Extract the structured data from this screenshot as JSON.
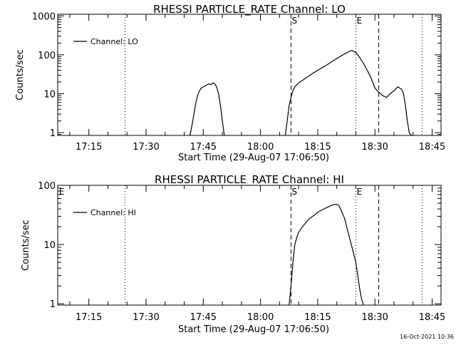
{
  "chart_data": [
    {
      "type": "line",
      "title": "RHESSI PARTICLE_RATE Channel: LO",
      "ylabel": "Counts/sec",
      "xlabel": "Start Time (29-Aug-07 17:06:50)",
      "yscale": "log",
      "ylim": [
        0.85,
        1100
      ],
      "xlim": [
        "17:06:50",
        "18:47:20"
      ],
      "yticks": [
        "1",
        "10",
        "100",
        "1000"
      ],
      "xticks": [
        "17:15",
        "17:30",
        "17:45",
        "18:00",
        "18:15",
        "18:30",
        "18:45"
      ],
      "legend": {
        "label": "Channel: LO",
        "placement": "top-left"
      },
      "markers": [
        {
          "label": "S",
          "time": "18:08:00",
          "style": "dashed"
        },
        {
          "label": "E",
          "time": "18:25:00",
          "style": "dotted"
        }
      ],
      "vlines": [
        {
          "time": "17:24:30",
          "style": "dotted"
        },
        {
          "time": "18:31:00",
          "style": "dashed"
        },
        {
          "time": "18:42:20",
          "style": "dotted"
        }
      ],
      "series": [
        {
          "name": "Channel: LO",
          "segments": [
            {
              "x": [
                "17:41:30",
                "17:42:00",
                "17:42:30",
                "17:43:00",
                "17:43:30",
                "17:44:00",
                "17:44:30",
                "17:45:00",
                "17:45:30",
                "17:46:00",
                "17:46:30",
                "17:47:00",
                "17:47:30",
                "17:48:00",
                "17:48:30",
                "17:49:00",
                "17:49:30",
                "17:50:00",
                "17:50:30"
              ],
              "y": [
                0.85,
                1.5,
                2.8,
                5.5,
                9,
                12,
                14,
                15,
                16,
                17,
                18,
                17,
                19,
                18,
                15,
                10,
                5,
                2,
                0.85
              ]
            },
            {
              "x": [
                "18:06:30",
                "18:07:00",
                "18:07:30",
                "18:08:00",
                "18:08:30",
                "18:09:00",
                "18:09:30",
                "18:10:00",
                "18:11:00",
                "18:12:00",
                "18:13:00",
                "18:14:00",
                "18:15:00",
                "18:16:00",
                "18:17:00",
                "18:18:00",
                "18:19:00",
                "18:20:00",
                "18:21:00",
                "18:22:00",
                "18:23:00",
                "18:23:30",
                "18:24:00",
                "18:24:30",
                "18:25:00",
                "18:25:30",
                "18:26:00",
                "18:27:00",
                "18:28:00",
                "18:29:00",
                "18:30:00",
                "18:31:00",
                "18:32:00",
                "18:33:00",
                "18:34:00",
                "18:35:00",
                "18:36:00",
                "18:37:00",
                "18:37:30",
                "18:38:00",
                "18:38:30",
                "18:39:00",
                "18:39:30",
                "18:40:00"
              ],
              "y": [
                0.85,
                2,
                5,
                8,
                12,
                15,
                17,
                19,
                22,
                26,
                30,
                35,
                40,
                46,
                52,
                60,
                70,
                80,
                92,
                105,
                118,
                125,
                128,
                122,
                115,
                100,
                85,
                60,
                40,
                25,
                14,
                11,
                9,
                8,
                10,
                12,
                15,
                13,
                10,
                5,
                2,
                1,
                0.85,
                0.85
              ]
            }
          ]
        }
      ]
    },
    {
      "type": "line",
      "title": "RHESSI PARTICLE_RATE Channel: HI",
      "ylabel": "Counts/sec",
      "xlabel": "Start Time (29-Aug-07 17:06:50)",
      "yscale": "log",
      "ylim": [
        0.95,
        100
      ],
      "xlim": [
        "17:06:50",
        "18:47:20"
      ],
      "yticks": [
        "1",
        "10",
        "100"
      ],
      "xticks": [
        "17:15",
        "17:30",
        "17:45",
        "18:00",
        "18:15",
        "18:30",
        "18:45"
      ],
      "legend": {
        "label": "Channel: HI",
        "placement": "top-left"
      },
      "markers": [
        {
          "label": "S",
          "time": "18:08:00",
          "style": "dashed"
        },
        {
          "label": "E",
          "time": "18:25:00",
          "style": "dotted"
        },
        {
          "label": "E",
          "time": "17:07:00",
          "style": "none"
        }
      ],
      "vlines": [
        {
          "time": "17:24:30",
          "style": "dotted"
        },
        {
          "time": "18:31:00",
          "style": "dashed"
        },
        {
          "time": "18:42:20",
          "style": "dotted"
        }
      ],
      "series": [
        {
          "name": "Channel: HI",
          "segments": [
            {
              "x": [
                "18:07:30",
                "18:08:00",
                "18:08:30",
                "18:09:00",
                "18:09:30",
                "18:10:00",
                "18:11:00",
                "18:12:00",
                "18:13:00",
                "18:14:00",
                "18:15:00",
                "18:16:00",
                "18:17:00",
                "18:18:00",
                "18:19:00",
                "18:20:00",
                "18:20:30",
                "18:21:00",
                "18:22:00",
                "18:23:00",
                "18:24:00",
                "18:25:00",
                "18:25:30",
                "18:26:00",
                "18:26:30",
                "18:27:00"
              ],
              "y": [
                0.95,
                2,
                5,
                10,
                13,
                16,
                20,
                24,
                28,
                31,
                35,
                38,
                41,
                44,
                47,
                48,
                46,
                40,
                28,
                16,
                9,
                5,
                3,
                1.8,
                1.2,
                0.95
              ]
            }
          ]
        }
      ]
    }
  ],
  "footer": {
    "timestamp": "16-Oct-2021 10:36"
  }
}
